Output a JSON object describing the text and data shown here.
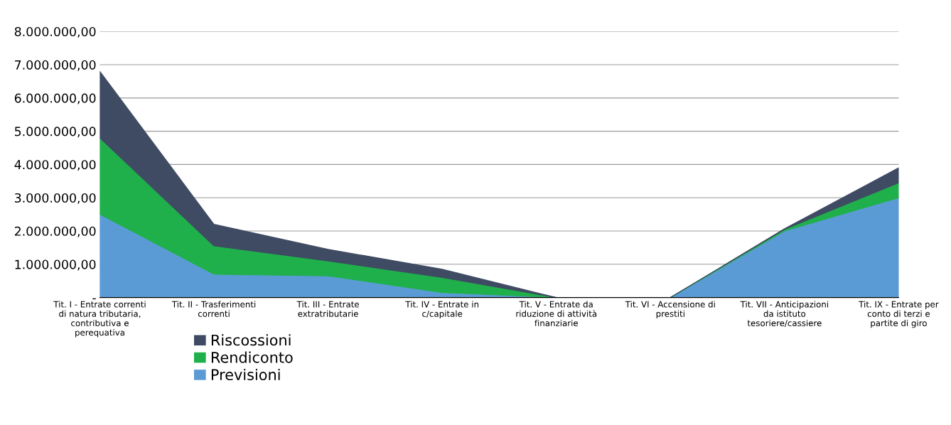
{
  "chart_data": {
    "type": "area",
    "stacked": true,
    "categories": [
      "Tit. I - Entrate correnti\ndi natura tributaria,\ncontributiva e\nperequativa",
      "Tit. II - Trasferimenti\ncorrenti",
      "Tit. III - Entrate\nextratributarie",
      "Tit. IV - Entrate in\nc/capitale",
      "Tit. V - Entrate da\nriduzione di attività\nfinanziarie",
      "Tit. VI - Accensione di\nprestiti",
      "Tit. VII - Anticipazioni\nda istituto\ntesoriere/cassiere",
      "Tit. IX - Entrate per\nconto di terzi e\npartite di giro"
    ],
    "series": [
      {
        "name": "Previsioni",
        "color": "#5b9bd5",
        "values": [
          2500000,
          700000,
          650000,
          150000,
          0,
          0,
          2000000,
          3000000
        ]
      },
      {
        "name": "Rendiconto",
        "color": "#1fb04b",
        "values": [
          2300000,
          850000,
          450000,
          450000,
          0,
          0,
          50000,
          450000
        ]
      },
      {
        "name": "Riscossioni",
        "color": "#3f4b63",
        "values": [
          2000000,
          650000,
          350000,
          250000,
          0,
          0,
          20000,
          450000
        ]
      }
    ],
    "ylim": [
      0,
      8000000
    ],
    "yticks": [
      {
        "value": 0,
        "label": "-"
      },
      {
        "value": 1000000,
        "label": "1.000.000,00"
      },
      {
        "value": 2000000,
        "label": "2.000.000,00"
      },
      {
        "value": 3000000,
        "label": "3.000.000,00"
      },
      {
        "value": 4000000,
        "label": "4.000.000,00"
      },
      {
        "value": 5000000,
        "label": "5.000.000,00"
      },
      {
        "value": 6000000,
        "label": "6.000.000,00"
      },
      {
        "value": 7000000,
        "label": "7.000.000,00"
      },
      {
        "value": 8000000,
        "label": "8.000.000,00"
      }
    ],
    "grid": "y",
    "legend": "bottom"
  }
}
